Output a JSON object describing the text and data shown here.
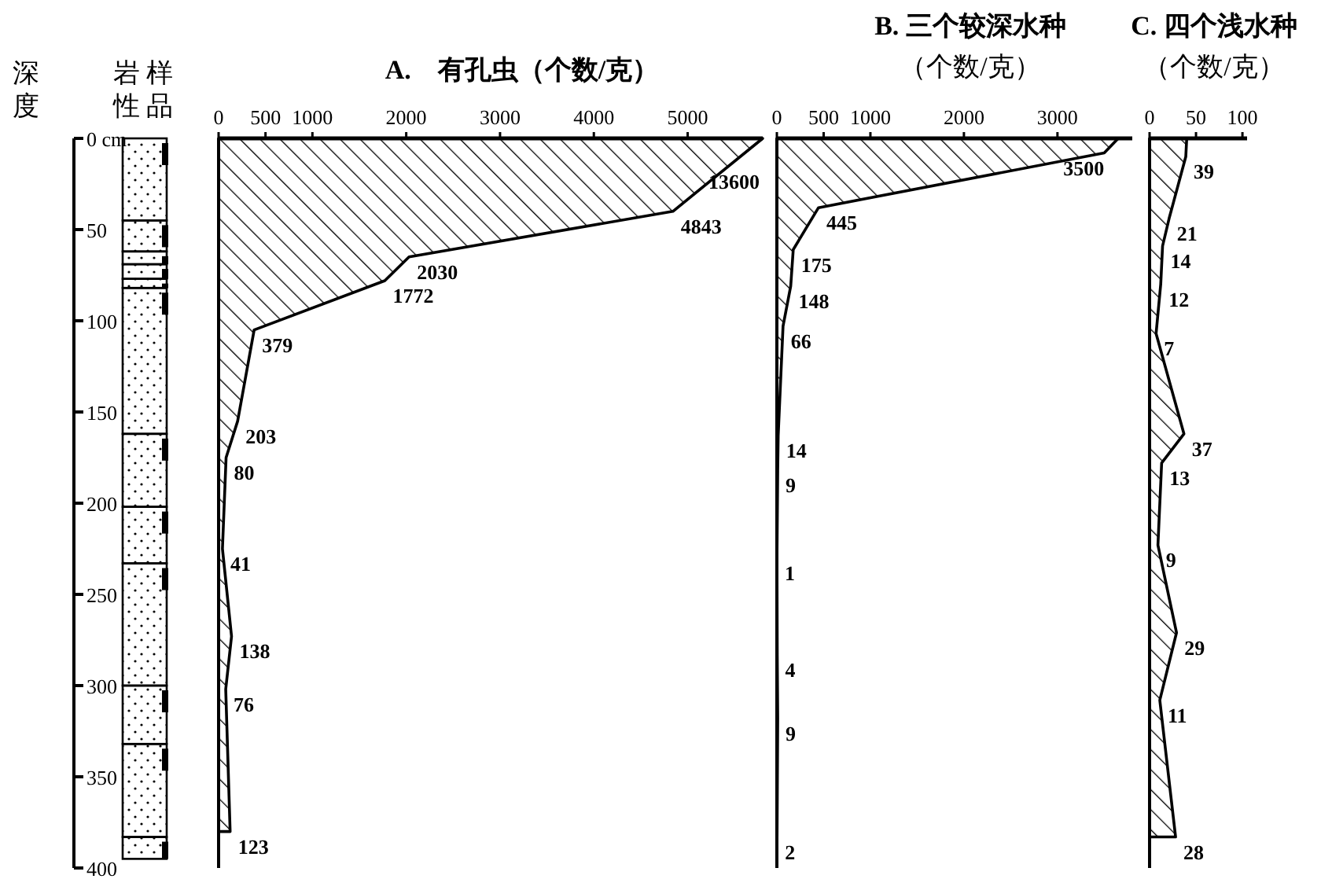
{
  "chart_data": [
    {
      "type": "area",
      "orientation": "horizontal",
      "title": "A.　有孔虫（个数/克）",
      "ylabel": "深度",
      "xlim": [
        0,
        5800
      ],
      "xticks": [
        0,
        500,
        1000,
        2000,
        3000,
        4000,
        5000
      ],
      "ylim": [
        400,
        0
      ],
      "yticks": [
        {
          "value": 0,
          "label": "0 cm"
        },
        50,
        100,
        150,
        200,
        250,
        300,
        350,
        400
      ],
      "annotations": [
        "岩性",
        "样品",
        "13600"
      ],
      "series": [
        {
          "color": "#000000",
          "x": [
            0,
            40,
            65,
            78,
            105,
            155,
            175,
            225,
            273,
            302,
            380
          ],
          "values": [
            5800,
            4843,
            2030,
            1772,
            379,
            203,
            80,
            41,
            138,
            76,
            123
          ],
          "value_labels": [
            null,
            "4843",
            "2030",
            "1772",
            "379",
            "203",
            "80",
            "41",
            "138",
            "76",
            "123"
          ]
        }
      ]
    },
    {
      "type": "area",
      "orientation": "horizontal",
      "title": "B. 三个较深水种",
      "subtitle": "（个数/克）",
      "xlim": [
        0,
        3800
      ],
      "xticks": [
        0,
        500,
        1000,
        2000,
        3000
      ],
      "ylim": [
        400,
        0
      ],
      "tick_labels": "x",
      "series": [
        {
          "color": "#000000",
          "x": [
            0,
            8,
            38,
            61,
            81,
            103,
            163,
            182,
            230,
            283,
            318,
            383
          ],
          "values": [
            3650,
            3500,
            445,
            175,
            148,
            66,
            14,
            9,
            1,
            4,
            9,
            2
          ],
          "value_labels": [
            null,
            "3500",
            "445",
            "175",
            "148",
            "66",
            "14",
            "9",
            "1",
            "4",
            "9",
            "2"
          ]
        }
      ]
    },
    {
      "type": "area",
      "orientation": "horizontal",
      "title": "C. 四个浅水种",
      "subtitle": "（个数/克）",
      "xlim": [
        0,
        105
      ],
      "xticks": [
        0,
        50,
        100
      ],
      "ylim": [
        400,
        0
      ],
      "tick_labels": "x",
      "series": [
        {
          "color": "#000000",
          "x": [
            0,
            10,
            44,
            59,
            80,
            107,
            162,
            178,
            223,
            271,
            308,
            383
          ],
          "values": [
            40,
            39,
            21,
            14,
            12,
            7,
            37,
            13,
            9,
            29,
            11,
            28
          ],
          "value_labels": [
            null,
            "39",
            "21",
            "14",
            "12",
            "7",
            "37",
            "13",
            "9",
            "29",
            "11",
            "28"
          ]
        }
      ]
    }
  ]
}
